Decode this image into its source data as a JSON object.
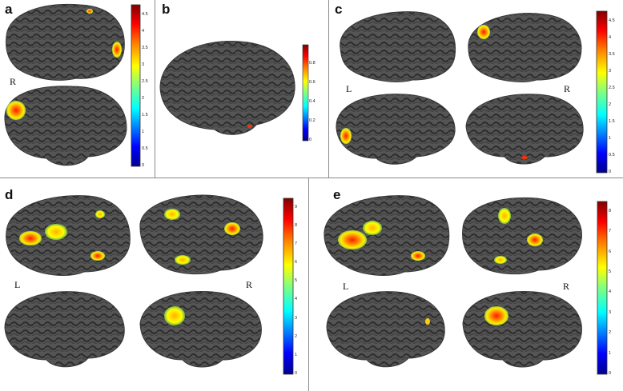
{
  "figure": {
    "panels": [
      {
        "id": "a",
        "label": "a",
        "side_labels": [
          "R"
        ],
        "colorbar": {
          "ticks": [
            "4.5",
            "4",
            "3.5",
            "3",
            "2.5",
            "2",
            "1.5",
            "1",
            "0.5",
            "0"
          ],
          "max": 4.8
        }
      },
      {
        "id": "b",
        "label": "b",
        "side_labels": [],
        "colorbar": {
          "ticks": [
            "0.8",
            "0.6",
            "0.4",
            "0.2",
            "0"
          ],
          "max": 1.0
        }
      },
      {
        "id": "c",
        "label": "c",
        "side_labels": [
          "L",
          "R"
        ],
        "colorbar": {
          "ticks": [
            "4.5",
            "4",
            "3.5",
            "3",
            "2.5",
            "2",
            "1.5",
            "1",
            "0.5",
            "0"
          ],
          "max": 4.8
        }
      },
      {
        "id": "d",
        "label": "d",
        "side_labels": [
          "L",
          "R"
        ],
        "colorbar": {
          "ticks": [
            "9",
            "8",
            "7",
            "6",
            "5",
            "4",
            "3",
            "2",
            "1",
            "0"
          ],
          "max": 9.5
        }
      },
      {
        "id": "e",
        "label": "e",
        "side_labels": [
          "L",
          "R"
        ],
        "colorbar": {
          "ticks": [
            "8",
            "7",
            "6",
            "5",
            "4",
            "3",
            "2",
            "1",
            "0"
          ],
          "max": 8.5
        }
      }
    ],
    "colors": {
      "brain": "#4d4d4d",
      "sulci": "#2e2e2e",
      "colormap": [
        "#00008f",
        "#0000ff",
        "#00ffff",
        "#80ff80",
        "#ffff00",
        "#ff8000",
        "#ff0000",
        "#800000"
      ]
    }
  }
}
